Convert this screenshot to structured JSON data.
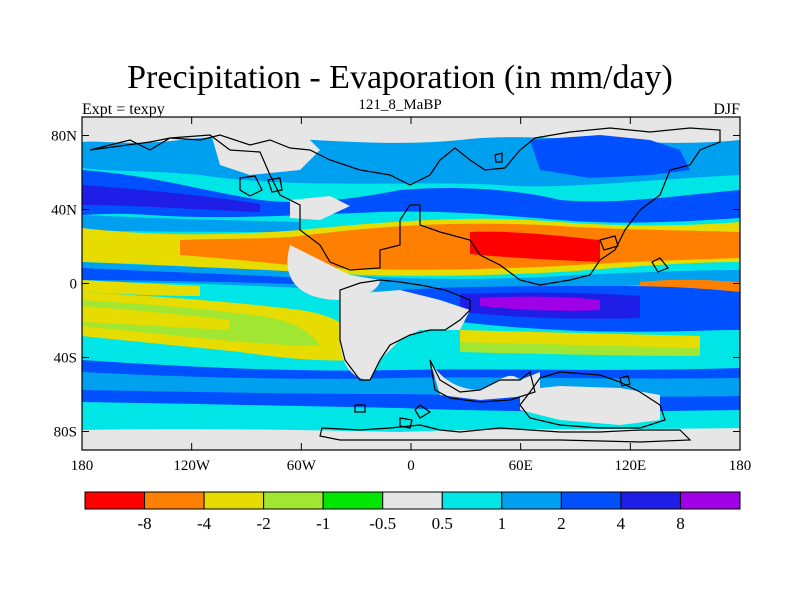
{
  "chart_data": {
    "type": "heatmap",
    "title": "Precipitation - Evaporation (in mm/day)",
    "subtitle_left": "Expt = texpy",
    "subtitle_center": "121_8_MaBP",
    "subtitle_right": "DJF",
    "x_ticks": [
      "180",
      "120W",
      "60W",
      "0",
      "60E",
      "120E",
      "180"
    ],
    "y_ticks": [
      "80N",
      "40N",
      "0",
      "40S",
      "80S"
    ],
    "xlim": [
      -180,
      180
    ],
    "ylim": [
      -90,
      90
    ],
    "x_tick_values": [
      -180,
      -120,
      -60,
      0,
      60,
      120,
      180
    ],
    "y_tick_values": [
      80,
      40,
      0,
      -40,
      -80
    ],
    "colorbar": {
      "colors": [
        "#ff0000",
        "#ff8000",
        "#e6dc00",
        "#a0e632",
        "#00e600",
        "#e6e6e6",
        "#00e6e6",
        "#00a0f0",
        "#0050ff",
        "#1e1ee6",
        "#a000e6"
      ],
      "labels": [
        "-8",
        "-4",
        "-2",
        "-1",
        "-0.5",
        "0.5",
        "1",
        "2",
        "4",
        "8"
      ]
    }
  }
}
